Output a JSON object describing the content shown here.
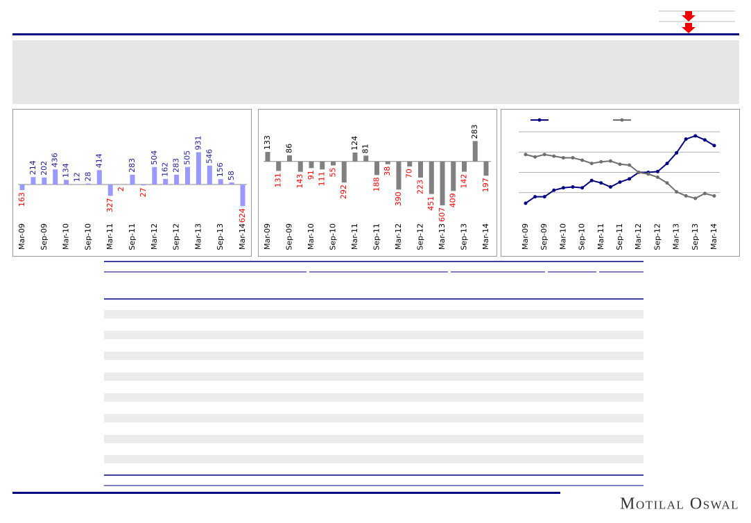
{
  "logo": "Motilal Oswal",
  "chart_data": [
    {
      "type": "bar",
      "categories": [
        "Mar-09",
        null,
        "Sep-09",
        null,
        "Mar-10",
        null,
        "Sep-10",
        null,
        "Mar-11",
        null,
        "Sep-11",
        null,
        "Mar-12",
        null,
        "Sep-12",
        null,
        "Mar-13",
        null,
        "Sep-13",
        null,
        "Mar-14"
      ],
      "values": [
        -163,
        214,
        202,
        436,
        134,
        12,
        28,
        414,
        -327,
        -2,
        283,
        -27,
        504,
        162,
        283,
        505,
        931,
        546,
        156,
        58,
        -624
      ],
      "value_labels": [
        "163",
        "214",
        "202",
        "436",
        "134",
        "12",
        "28",
        "414",
        "327",
        "2",
        "283",
        "27",
        "504",
        "162",
        "283",
        "505",
        "931",
        "546",
        "156",
        "58",
        "624"
      ],
      "color": "#9999ff",
      "label_color": "#1f1f99",
      "negative_label_color": "#ff0000",
      "ylim": [
        -1000,
        1600
      ]
    },
    {
      "type": "bar",
      "categories": [
        "Mar-09",
        null,
        "Sep-09",
        null,
        "Mar-10",
        null,
        "Sep-10",
        null,
        "Mar-11",
        null,
        "Sep-11",
        null,
        "Mar-12",
        null,
        "Sep-12",
        null,
        "Mar-13",
        null,
        "Sep-13",
        null,
        "Mar-14"
      ],
      "values": [
        133,
        -131,
        86,
        -143,
        -91,
        -111,
        -55,
        -292,
        124,
        81,
        -188,
        -38,
        -390,
        -70,
        -223,
        -451,
        -607,
        -409,
        -142,
        283,
        -197
      ],
      "value_labels": [
        "133",
        "131",
        "86",
        "143",
        "91",
        "111",
        "55",
        "292",
        "124",
        "81",
        "188",
        "38",
        "390",
        "70",
        "223",
        "451",
        "607",
        "409",
        "142",
        "283",
        "197"
      ],
      "color": "#808080",
      "label_color": "#000000",
      "negative_label_color": "#ff0000",
      "ylim": [
        -800,
        450
      ]
    },
    {
      "type": "line",
      "categories": [
        "Mar-09",
        null,
        "Sep-09",
        null,
        "Mar-10",
        null,
        "Sep-10",
        null,
        "Mar-11",
        null,
        "Sep-11",
        null,
        "Mar-12",
        null,
        "Sep-12",
        null,
        "Mar-13",
        null,
        "Sep-13",
        null,
        "Mar-14"
      ],
      "series": [
        {
          "color": "#000080",
          "values": [
            12,
            20,
            20,
            28,
            31,
            32,
            31,
            40,
            37,
            32,
            38,
            42,
            50,
            50,
            51,
            61,
            74,
            91,
            95,
            90,
            83
          ]
        },
        {
          "color": "#6e6e6e",
          "values": [
            72,
            69,
            72,
            70,
            68,
            68,
            65,
            61,
            63,
            64,
            60,
            59,
            50,
            48,
            44,
            37,
            26,
            21,
            18,
            24,
            21
          ]
        }
      ],
      "ylim": [
        0,
        100
      ],
      "gridlines": [
        25,
        50,
        75,
        100
      ]
    }
  ]
}
